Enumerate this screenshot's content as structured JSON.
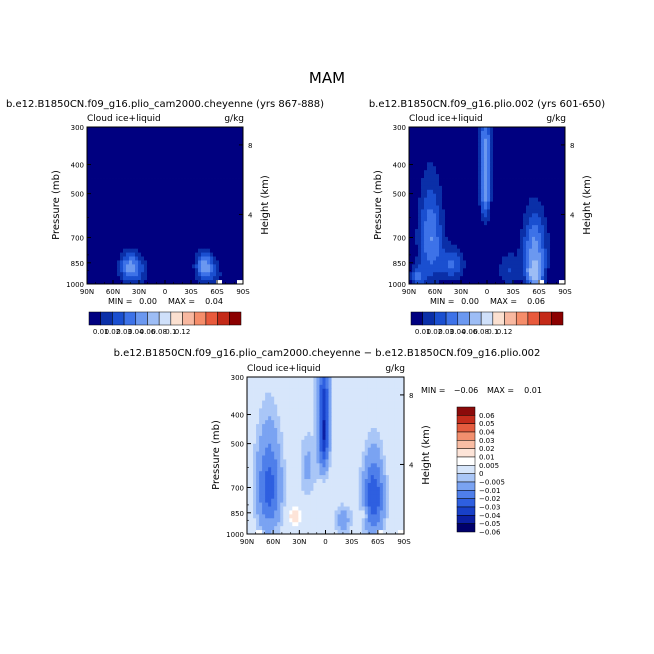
{
  "figure": {
    "season": "MAM"
  },
  "colors": {
    "abs_scale": [
      "#000080",
      "#0a2fa8",
      "#1a4fd0",
      "#3d72e8",
      "#6b98f0",
      "#9dbdf5",
      "#cfe0fa",
      "#fbe0d0",
      "#f8b8a0",
      "#f58d6a",
      "#e85a3c",
      "#c42a18",
      "#8b0000"
    ],
    "diff_scale": [
      "#00006b",
      "#0b1fa3",
      "#1840c8",
      "#2e5fe0",
      "#4f7fea",
      "#7aa3f2",
      "#a9c6f7",
      "#d7e6fb",
      "#ffffff",
      "#fde4d8",
      "#f9bda4",
      "#f28f6e",
      "#e45c3f",
      "#c42c1c",
      "#8b0a0a"
    ]
  },
  "chart_data": [
    {
      "type": "heatmap",
      "title": "b.e12.B1850CN.f09_g16.plio_cam2000.cheyenne (yrs 867-888)",
      "left_label": "Cloud ice+liquid",
      "unit": "g/kg",
      "ylabel": "Pressure (mb)",
      "y2label": "Height (km)",
      "x_ticks": [
        "90N",
        "60N",
        "30N",
        "0",
        "30S",
        "60S",
        "90S"
      ],
      "y_ticks": [
        "300",
        "400",
        "500",
        "700",
        "850",
        "1000"
      ],
      "y2_ticks": [
        "8",
        "4"
      ],
      "stats": {
        "min_label": "MIN =",
        "min": "0.00",
        "max_label": "MAX =",
        "max": "0.04"
      },
      "colorbar_labels": [
        "0.01",
        "0.02",
        "0.03",
        "0.04",
        "0.06",
        "0.08",
        "0.1",
        "0.12"
      ],
      "levels": [
        0.01,
        0.02,
        0.03,
        0.04,
        0.06,
        0.08,
        0.1,
        0.12
      ],
      "features": [
        {
          "lat": 40,
          "p": 870,
          "amp": 0.032,
          "slat": 12,
          "sp": 90
        },
        {
          "lat": -45,
          "p": 860,
          "amp": 0.036,
          "slat": 10,
          "sp": 85
        },
        {
          "lat": 35,
          "p": 920,
          "amp": 0.018,
          "slat": 18,
          "sp": 120
        },
        {
          "lat": -52,
          "p": 930,
          "amp": 0.02,
          "slat": 14,
          "sp": 110
        }
      ]
    },
    {
      "type": "heatmap",
      "title": "b.e12.B1850CN.f09_g16.plio.002 (yrs 601-650)",
      "left_label": "Cloud ice+liquid",
      "unit": "g/kg",
      "ylabel": "Pressure (mb)",
      "y2label": "Height (km)",
      "x_ticks": [
        "90N",
        "60N",
        "30N",
        "0",
        "30S",
        "60S",
        "90S"
      ],
      "y_ticks": [
        "300",
        "400",
        "500",
        "700",
        "850",
        "1000"
      ],
      "y2_ticks": [
        "8",
        "4"
      ],
      "stats": {
        "min_label": "MIN =",
        "min": "0.00",
        "max_label": "MAX =",
        "max": "0.06"
      },
      "colorbar_labels": [
        "0.01",
        "0.02",
        "0.03",
        "0.04",
        "0.06",
        "0.08",
        "0.1",
        "0.12"
      ],
      "levels": [
        0.01,
        0.02,
        0.03,
        0.04,
        0.06,
        0.08,
        0.1,
        0.12
      ],
      "features": [
        {
          "lat": 2,
          "p": 480,
          "amp": 0.05,
          "slat": 6,
          "sp": 120
        },
        {
          "lat": 65,
          "p": 700,
          "amp": 0.04,
          "slat": 14,
          "sp": 260
        },
        {
          "lat": -55,
          "p": 780,
          "amp": 0.045,
          "slat": 14,
          "sp": 220
        },
        {
          "lat": -55,
          "p": 920,
          "amp": 0.05,
          "slat": 8,
          "sp": 80
        },
        {
          "lat": 40,
          "p": 860,
          "amp": 0.03,
          "slat": 14,
          "sp": 110
        },
        {
          "lat": 2,
          "p": 330,
          "amp": 0.03,
          "slat": 8,
          "sp": 90
        },
        {
          "lat": -25,
          "p": 900,
          "amp": 0.02,
          "slat": 12,
          "sp": 120
        },
        {
          "lat": 80,
          "p": 950,
          "amp": 0.03,
          "slat": 8,
          "sp": 80
        }
      ]
    },
    {
      "type": "heatmap",
      "title": "b.e12.B1850CN.f09_g16.plio_cam2000.cheyenne − b.e12.B1850CN.f09_g16.plio.002",
      "left_label": "Cloud ice+liquid",
      "unit": "g/kg",
      "ylabel": "Pressure (mb)",
      "y2label": "Height (km)",
      "x_ticks": [
        "90N",
        "60N",
        "30N",
        "0",
        "30S",
        "60S",
        "90S"
      ],
      "y_ticks": [
        "300",
        "400",
        "500",
        "700",
        "850",
        "1000"
      ],
      "y2_ticks": [
        "8",
        "4"
      ],
      "stats": {
        "min_label": "MIN =",
        "min": "−0.06",
        "max_label": "MAX =",
        "max": "0.01"
      },
      "colorbar_labels": [
        "0.06",
        "0.05",
        "0.04",
        "0.03",
        "0.02",
        "0.01",
        "0.005",
        "0",
        "−0.005",
        "−0.01",
        "−0.02",
        "−0.03",
        "−0.04",
        "−0.05",
        "−0.06"
      ],
      "levels": [
        -0.06,
        -0.05,
        -0.04,
        -0.03,
        -0.02,
        -0.01,
        -0.005,
        0.005,
        0.01,
        0.02,
        0.03,
        0.04,
        0.05,
        0.06
      ],
      "features": [
        {
          "lat": 2,
          "p": 470,
          "amp": -0.05,
          "slat": 6,
          "sp": 130
        },
        {
          "lat": 65,
          "p": 700,
          "amp": -0.035,
          "slat": 14,
          "sp": 260
        },
        {
          "lat": -55,
          "p": 760,
          "amp": -0.04,
          "slat": 12,
          "sp": 220
        },
        {
          "lat": 2,
          "p": 330,
          "amp": -0.025,
          "slat": 8,
          "sp": 80
        },
        {
          "lat": 35,
          "p": 870,
          "amp": 0.018,
          "slat": 7,
          "sp": 55
        },
        {
          "lat": -45,
          "p": 860,
          "amp": 0.012,
          "slat": 5,
          "sp": 45
        },
        {
          "lat": -20,
          "p": 900,
          "amp": -0.015,
          "slat": 10,
          "sp": 100
        },
        {
          "lat": 20,
          "p": 600,
          "amp": -0.012,
          "slat": 10,
          "sp": 150
        }
      ]
    }
  ]
}
